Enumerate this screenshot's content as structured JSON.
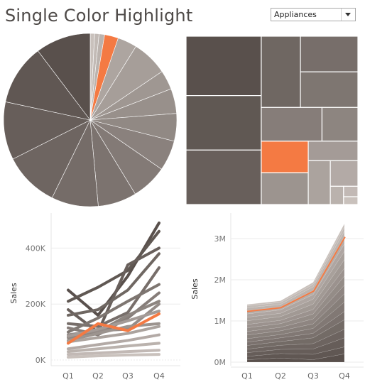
{
  "title": "Single Color Highlight",
  "filter": {
    "selected": "Appliances"
  },
  "colors": {
    "highlight": "#f47a43",
    "dark": "#59504c",
    "light": "#c9c1bc",
    "grid": "#ebebeb"
  },
  "icons": {
    "dropdown": "chevron-down-icon"
  },
  "chart_data": [
    {
      "type": "pie",
      "highlight_index": 3,
      "values": [
        0.8,
        0.8,
        1.0,
        2.5,
        3.5,
        6.5,
        3.5,
        4.5,
        5,
        5.5,
        6.5,
        7,
        8.5,
        10,
        10.5,
        11,
        10
      ]
    },
    {
      "type": "treemap",
      "highlight_index": 8,
      "values": [
        24,
        22,
        22,
        15,
        11,
        11,
        11,
        6.5,
        8,
        8,
        5.2,
        5.2,
        3.8,
        1.3,
        0.8,
        0.6
      ]
    },
    {
      "type": "line",
      "categories": [
        "Q1",
        "Q2",
        "Q3",
        "Q4"
      ],
      "ylabel": "Sales",
      "yticks": [
        "0K",
        "200K",
        "400K"
      ],
      "ylim": [
        0,
        500000
      ],
      "highlight_index": 0,
      "series": [
        {
          "values": [
            60000,
            130000,
            105000,
            165000
          ]
        },
        {
          "values": [
            250000,
            160000,
            300000,
            490000
          ]
        },
        {
          "values": [
            210000,
            260000,
            320000,
            460000
          ]
        },
        {
          "values": [
            180000,
            100000,
            340000,
            400000
          ]
        },
        {
          "values": [
            160000,
            180000,
            250000,
            380000
          ]
        },
        {
          "values": [
            130000,
            120000,
            170000,
            330000
          ]
        },
        {
          "values": [
            100000,
            150000,
            210000,
            270000
          ]
        },
        {
          "values": [
            115000,
            90000,
            150000,
            240000
          ]
        },
        {
          "values": [
            80000,
            100000,
            160000,
            210000
          ]
        },
        {
          "values": [
            90000,
            105000,
            110000,
            200000
          ]
        },
        {
          "values": [
            70000,
            95000,
            120000,
            130000
          ]
        },
        {
          "values": [
            85000,
            110000,
            140000,
            175000
          ]
        },
        {
          "values": [
            65000,
            80000,
            95000,
            120000
          ]
        },
        {
          "values": [
            40000,
            55000,
            70000,
            90000
          ]
        },
        {
          "values": [
            30000,
            40000,
            50000,
            60000
          ]
        },
        {
          "values": [
            20000,
            25000,
            30000,
            35000
          ]
        },
        {
          "values": [
            10000,
            15000,
            18000,
            20000
          ]
        }
      ]
    },
    {
      "type": "area",
      "categories": [
        "Q1",
        "Q2",
        "Q3",
        "Q4"
      ],
      "ylabel": "Sales",
      "yticks": [
        "0M",
        "1M",
        "2M",
        "3M"
      ],
      "ylim": [
        0,
        3500000
      ],
      "highlight_index": 14,
      "layers": [
        {
          "values": [
            60000,
            100000,
            60000,
            200000
          ]
        },
        {
          "values": [
            80000,
            110000,
            130000,
            170000
          ]
        },
        {
          "values": [
            90000,
            100000,
            130000,
            220000
          ]
        },
        {
          "values": [
            85000,
            100000,
            130000,
            210000
          ]
        },
        {
          "values": [
            90000,
            90000,
            140000,
            230000
          ]
        },
        {
          "values": [
            80000,
            90000,
            110000,
            200000
          ]
        },
        {
          "values": [
            85000,
            80000,
            120000,
            230000
          ]
        },
        {
          "values": [
            90000,
            90000,
            110000,
            200000
          ]
        },
        {
          "values": [
            85000,
            85000,
            120000,
            210000
          ]
        },
        {
          "values": [
            90000,
            90000,
            120000,
            220000
          ]
        },
        {
          "values": [
            80000,
            80000,
            110000,
            190000
          ]
        },
        {
          "values": [
            90000,
            90000,
            130000,
            210000
          ]
        },
        {
          "values": [
            85000,
            80000,
            120000,
            200000
          ]
        },
        {
          "values": [
            80000,
            85000,
            110000,
            180000
          ]
        },
        {
          "values": [
            80000,
            70000,
            100000,
            180000
          ]
        },
        {
          "values": [
            70000,
            60000,
            90000,
            130000
          ]
        },
        {
          "values": [
            50000,
            50000,
            60000,
            100000
          ]
        },
        {
          "values": [
            30000,
            40000,
            50000,
            80000
          ]
        }
      ]
    }
  ]
}
